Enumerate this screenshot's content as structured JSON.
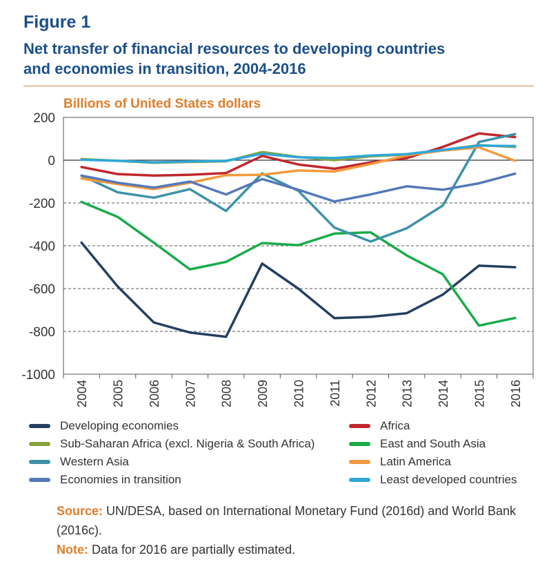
{
  "figure_label": "Figure 1",
  "title_line1": "Net transfer of financial resources to developing countries",
  "title_line2": "and economies in transition, 2004-2016",
  "source_label": "Source:",
  "source_text": "UN/DESA, based on International Monetary Fund (2016d) and World Bank (2016c).",
  "note_label": "Note:",
  "note_text": "Data for 2016 are partially estimated.",
  "chart_data": {
    "type": "line",
    "ylabel": "Billions of United States dollars",
    "ylim": [
      -1000,
      200
    ],
    "yticks": [
      200,
      0,
      -200,
      -400,
      -600,
      -800,
      -1000
    ],
    "ytick_labels": [
      "200",
      "0",
      "-200",
      "-400",
      "-600",
      "-800",
      "-1000"
    ],
    "x": [
      "2004",
      "2005",
      "2006",
      "2007",
      "2008",
      "2009",
      "2010",
      "2011",
      "2012",
      "2013",
      "2014",
      "2015",
      "2016"
    ],
    "grid": "dashed horizontal at -200, -400, -600, -800",
    "legend_position": "bottom",
    "series": [
      {
        "name": "Developing economies",
        "color": "#243f60",
        "values": [
          -385,
          -590,
          -758,
          -805,
          -825,
          -483,
          -600,
          -738,
          -732,
          -715,
          -628,
          -493,
          -500
        ]
      },
      {
        "name": "Africa",
        "color": "#c0272d",
        "values": [
          -32,
          -65,
          -72,
          -68,
          -60,
          20,
          -20,
          -40,
          -10,
          10,
          62,
          125,
          108
        ]
      },
      {
        "name": "Sub-Saharan Africa (excl. Nigeria & South Africa)",
        "color": "#86a43c",
        "values": [
          5,
          -3,
          -12,
          -8,
          -5,
          38,
          15,
          0,
          18,
          26,
          48,
          70,
          62
        ]
      },
      {
        "name": "East and South Asia",
        "color": "#1aab4b",
        "values": [
          -195,
          -265,
          -385,
          -510,
          -475,
          -387,
          -397,
          -343,
          -337,
          -445,
          -533,
          -773,
          -737
        ]
      },
      {
        "name": "Western Asia",
        "color": "#3d92a8",
        "values": [
          -72,
          -150,
          -175,
          -135,
          -237,
          -62,
          -143,
          -315,
          -380,
          -318,
          -212,
          85,
          122
        ]
      },
      {
        "name": "Latin America",
        "color": "#f3993e",
        "values": [
          -85,
          -112,
          -135,
          -105,
          -70,
          -68,
          -48,
          -53,
          -18,
          22,
          45,
          60,
          -3
        ]
      },
      {
        "name": "Economies in transition",
        "color": "#5479b8",
        "values": [
          -72,
          -105,
          -128,
          -100,
          -160,
          -88,
          -138,
          -193,
          -160,
          -122,
          -138,
          -108,
          -63
        ]
      },
      {
        "name": "Least developed countries",
        "color": "#2fa8d8",
        "values": [
          2,
          -3,
          -10,
          -6,
          -3,
          30,
          14,
          10,
          22,
          28,
          48,
          68,
          66
        ]
      }
    ]
  }
}
